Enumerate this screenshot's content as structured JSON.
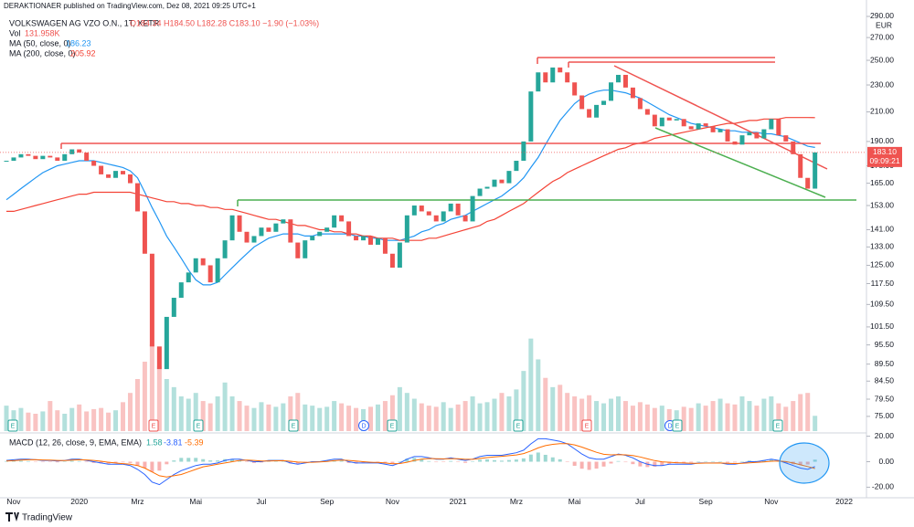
{
  "header": "DERAKTIONAER published on TradingView.com, Dez 08, 2021 09:25 UTC+1",
  "footer": "TradingView",
  "chart_data": {
    "type": "candlestick",
    "title": "VOLKSWAGEN AG VZO O.N., 1T, XETR",
    "ohlc_text": "O184.34 H184.50 L182.28 C183.10 −1.90 (−1.03%)",
    "currency": "EUR",
    "last_price_label": "183.10",
    "countdown": "09:09:21",
    "log_scale": true,
    "up_color": "#26a69a",
    "down_color": "#ef5350",
    "ylim": [
      70.7,
      300
    ],
    "yticks": [
      {
        "value": 290,
        "label": "290.00"
      },
      {
        "value": 270,
        "label": "270.00"
      },
      {
        "value": 250,
        "label": "250.00"
      },
      {
        "value": 230,
        "label": "230.00"
      },
      {
        "value": 210,
        "label": "210.00"
      },
      {
        "value": 190,
        "label": "190.00"
      },
      {
        "value": 175,
        "label": "175.00"
      },
      {
        "value": 165,
        "label": "165.00"
      },
      {
        "value": 153,
        "label": "153.00"
      },
      {
        "value": 141,
        "label": "141.00"
      },
      {
        "value": 133,
        "label": "133.00"
      },
      {
        "value": 125,
        "label": "125.00"
      },
      {
        "value": 117.5,
        "label": "117.50"
      },
      {
        "value": 109.5,
        "label": "109.50"
      },
      {
        "value": 101.5,
        "label": "101.50"
      },
      {
        "value": 95.5,
        "label": "95.50"
      },
      {
        "value": 89.5,
        "label": "89.50"
      },
      {
        "value": 84.5,
        "label": "84.50"
      },
      {
        "value": 79.5,
        "label": "79.50"
      },
      {
        "value": 75,
        "label": "75.00"
      }
    ],
    "categories": [
      null,
      "Nov",
      null,
      null,
      null,
      null,
      null,
      null,
      null,
      null,
      "2020",
      null,
      null,
      null,
      null,
      null,
      null,
      null,
      "Mrz",
      null,
      null,
      null,
      null,
      null,
      null,
      null,
      "Mai",
      null,
      null,
      null,
      null,
      null,
      null,
      null,
      null,
      "Jul",
      null,
      null,
      null,
      null,
      null,
      null,
      null,
      null,
      "Sep",
      null,
      null,
      null,
      null,
      null,
      null,
      null,
      null,
      "Nov",
      null,
      null,
      null,
      null,
      null,
      null,
      null,
      null,
      "2021",
      null,
      null,
      null,
      null,
      null,
      null,
      null,
      "Mrz",
      null,
      null,
      null,
      null,
      null,
      null,
      null,
      "Mai",
      null,
      null,
      null,
      null,
      null,
      null,
      null,
      null,
      "Jul",
      null,
      null,
      null,
      null,
      null,
      null,
      null,
      null,
      "Sep",
      null,
      null,
      null,
      null,
      null,
      null,
      null,
      null,
      "Nov",
      null,
      null,
      null,
      null,
      null,
      null,
      null,
      null,
      null,
      "2022"
    ],
    "values": [
      178,
      180,
      182,
      181,
      179,
      181,
      180,
      178,
      182,
      185,
      183,
      178,
      175,
      170,
      168,
      172,
      170,
      165,
      150,
      130,
      95,
      88,
      105,
      112,
      118,
      122,
      128,
      125,
      118,
      128,
      136,
      148,
      140,
      135,
      138,
      142,
      140,
      144,
      146,
      135,
      128,
      136,
      138,
      140,
      142,
      148,
      145,
      138,
      136,
      138,
      134,
      137,
      130,
      124,
      135,
      148,
      153,
      150,
      148,
      145,
      150,
      154,
      148,
      145,
      158,
      162,
      163,
      167,
      165,
      172,
      178,
      190,
      225,
      240,
      232,
      244,
      240,
      232,
      222,
      212,
      206,
      215,
      218,
      232,
      238,
      228,
      220,
      212,
      208,
      200,
      206,
      204,
      205,
      200,
      198,
      202,
      200,
      196,
      198,
      190,
      188,
      194,
      196,
      192,
      198,
      205,
      194,
      190,
      182,
      168,
      162,
      183.1,
      null,
      null,
      null,
      null
    ],
    "indicators": [
      {
        "name": "MA (50, close, 0)",
        "value_label": "186.23",
        "color": "#2196f3",
        "values": [
          156,
          159,
          162,
          165,
          168,
          171,
          173,
          175,
          176,
          177,
          178,
          178,
          178,
          177,
          176,
          175,
          174,
          172,
          168,
          160,
          152,
          145,
          138,
          133,
          128,
          123,
          119,
          117,
          117,
          118,
          121,
          124,
          127,
          130,
          133,
          135,
          137,
          138,
          139,
          139,
          139,
          138,
          138,
          139,
          139,
          139,
          139,
          139,
          138,
          138,
          137,
          137,
          136,
          136,
          136,
          137,
          138,
          140,
          141,
          143,
          144,
          146,
          147,
          148,
          150,
          152,
          154,
          156,
          158,
          161,
          164,
          168,
          174,
          180,
          188,
          196,
          204,
          210,
          216,
          220,
          223,
          225,
          226,
          226,
          225,
          224,
          222,
          220,
          217,
          214,
          211,
          208,
          206,
          204,
          202,
          201,
          200,
          199,
          198,
          197,
          197,
          196,
          196,
          196,
          195,
          195,
          194,
          193,
          191,
          189,
          187,
          186.23,
          null,
          null,
          null,
          null
        ]
      },
      {
        "name": "MA (200, close, 0)",
        "value_label": "205.92",
        "color": "#f44336",
        "values": [
          150,
          150,
          151,
          152,
          153,
          154,
          155,
          156,
          157,
          158,
          159,
          159,
          160,
          160,
          160,
          160,
          160,
          160,
          159,
          158,
          157,
          156,
          155,
          155,
          154,
          154,
          153,
          153,
          152,
          152,
          151,
          151,
          150,
          149,
          148,
          147,
          146,
          146,
          145,
          144,
          143,
          143,
          142,
          141,
          141,
          140,
          140,
          139,
          139,
          138,
          138,
          137,
          137,
          137,
          136,
          136,
          136,
          136,
          137,
          137,
          138,
          139,
          140,
          141,
          142,
          143,
          145,
          146,
          148,
          150,
          152,
          154,
          157,
          160,
          163,
          166,
          168,
          171,
          173,
          175,
          177,
          179,
          181,
          183,
          185,
          186,
          188,
          189,
          190,
          192,
          193,
          194,
          195,
          196,
          197,
          198,
          199,
          200,
          201,
          202,
          202,
          203,
          204,
          204,
          205,
          205,
          205,
          206,
          206,
          206,
          206,
          205.92,
          null,
          null,
          null,
          null
        ]
      }
    ],
    "volume": {
      "name": "Vol",
      "value_label": "131.958K",
      "ylim": [
        0,
        1500
      ],
      "values": [
        220,
        180,
        200,
        160,
        150,
        170,
        260,
        180,
        150,
        200,
        230,
        170,
        190,
        200,
        160,
        180,
        250,
        330,
        450,
        600,
        750,
        560,
        450,
        380,
        300,
        280,
        330,
        260,
        240,
        300,
        420,
        300,
        260,
        220,
        200,
        250,
        230,
        210,
        240,
        300,
        330,
        230,
        220,
        200,
        210,
        260,
        240,
        220,
        200,
        190,
        210,
        230,
        260,
        310,
        380,
        330,
        280,
        240,
        220,
        210,
        250,
        200,
        230,
        260,
        300,
        240,
        250,
        280,
        330,
        300,
        360,
        520,
        800,
        620,
        460,
        380,
        400,
        330,
        300,
        280,
        310,
        260,
        240,
        280,
        300,
        260,
        220,
        250,
        230,
        200,
        220,
        190,
        180,
        210,
        200,
        240,
        220,
        260,
        280,
        240,
        230,
        300,
        260,
        220,
        280,
        300,
        240,
        210,
        260,
        320,
        330,
        131.958,
        null,
        null,
        null,
        null
      ]
    },
    "macd": {
      "name": "MACD (12, 26, close, 9, EMA, EMA)",
      "ylim": [
        -29,
        24
      ],
      "yticks": [
        {
          "value": 20,
          "label": "20.00"
        },
        {
          "value": 0,
          "label": "0.00"
        },
        {
          "value": -20,
          "label": "-20.00"
        }
      ],
      "histogram": {
        "value_label": "1.58",
        "color": "#26a69a",
        "values": [
          0.5,
          0.7,
          0.8,
          0.5,
          -0.1,
          -0.4,
          -0.2,
          -0.5,
          0.1,
          0.8,
          0.5,
          -0.4,
          -1,
          -1.4,
          -1.6,
          -1,
          -0.5,
          -1,
          -3,
          -5,
          -8,
          -7,
          -2,
          1,
          3,
          3,
          3,
          2,
          1,
          1,
          2,
          2,
          1,
          -0.2,
          -1,
          -0.6,
          0.4,
          0.3,
          0.2,
          -1.4,
          -1.7,
          -0.5,
          0.4,
          0.2,
          0.8,
          1.2,
          0.8,
          -1,
          -1.5,
          -1,
          -0.6,
          -0.4,
          -1,
          -1.4,
          0.4,
          2.4,
          3,
          2,
          0.5,
          -0.4,
          -0.2,
          0.6,
          -0.3,
          -0.9,
          0.1,
          1.5,
          1.8,
          1.2,
          0.8,
          1.3,
          1.7,
          2.6,
          5.6,
          7.2,
          5.4,
          3.4,
          1.9,
          -0.1,
          -3.2,
          -5.5,
          -6.4,
          -5.4,
          -3.8,
          -1.4,
          0.5,
          -0.4,
          -1.9,
          -3.7,
          -4.2,
          -3.9,
          -2.9,
          -1.6,
          -1.2,
          -1,
          -0.7,
          0.2,
          0.1,
          0.1,
          0,
          -0.8,
          -0.6,
          0.3,
          0.9,
          0.6,
          1.2,
          1.6,
          0.4,
          -1.1,
          -2,
          -2.6,
          -2.2,
          1.58,
          null,
          null,
          null,
          null
        ]
      },
      "macd": {
        "value_label": "-3.81",
        "color": "#2962ff",
        "values": [
          1,
          1.5,
          2,
          2,
          1.5,
          1,
          1,
          0.5,
          1,
          2,
          2,
          1,
          0,
          -1,
          -2,
          -2,
          -2,
          -3,
          -6,
          -10,
          -16,
          -18,
          -14,
          -10,
          -7,
          -5,
          -3,
          -2,
          -2,
          -1,
          1,
          2,
          2,
          1,
          0,
          0,
          1,
          1,
          1,
          -1,
          -2,
          -1,
          0,
          0,
          1,
          2,
          2,
          0,
          -1,
          -1,
          -1,
          -1,
          -2,
          -3,
          -1,
          2,
          4,
          4,
          3,
          2,
          2,
          3,
          2,
          1,
          2,
          4,
          5,
          5,
          5,
          6,
          7,
          9,
          14,
          18,
          18,
          17,
          16,
          14,
          10,
          6,
          3,
          2,
          2,
          4,
          6,
          5,
          3,
          0,
          -2,
          -3,
          -3,
          -2,
          -2,
          -2,
          -2,
          -1,
          -1,
          -1,
          -1,
          -2,
          -2,
          -1,
          0,
          0,
          1,
          2,
          1,
          -1,
          -3,
          -5,
          -6,
          -3.81,
          null,
          null,
          null,
          null
        ]
      },
      "signal": {
        "value_label": "-5.39",
        "color": "#ff6d00",
        "values": [
          0.5,
          0.8,
          1.2,
          1.5,
          1.6,
          1.4,
          1.2,
          1,
          0.9,
          1.2,
          1.5,
          1.4,
          1,
          0.4,
          -0.4,
          -1,
          -1.5,
          -2,
          -3,
          -5,
          -8,
          -11,
          -12,
          -11,
          -10,
          -8,
          -6,
          -4,
          -3,
          -2,
          -1,
          0,
          1,
          1.2,
          1,
          0.6,
          0.6,
          0.7,
          0.8,
          0.4,
          -0.3,
          -0.5,
          -0.4,
          -0.2,
          0.2,
          0.8,
          1.2,
          1,
          0.5,
          0,
          -0.4,
          -0.6,
          -1,
          -1.6,
          -1.4,
          -0.4,
          1,
          2,
          2.5,
          2.4,
          2.2,
          2.4,
          2.3,
          1.9,
          1.9,
          2.5,
          3.2,
          3.8,
          4.2,
          4.7,
          5.3,
          6.4,
          8.4,
          10.8,
          12.6,
          13.6,
          14.1,
          14.1,
          13.2,
          11.5,
          9.4,
          7.4,
          5.8,
          5.4,
          5.5,
          5.4,
          4.9,
          3.7,
          2.2,
          0.9,
          -0.1,
          -0.4,
          -0.8,
          -1,
          -1.3,
          -1.2,
          -1.1,
          -1.1,
          -1,
          -1.2,
          -1.4,
          -1.3,
          -0.9,
          -0.6,
          -0.2,
          0.4,
          0.6,
          0.1,
          -1,
          -2.4,
          -3.8,
          -5.39,
          null,
          null,
          null,
          null
        ]
      }
    },
    "events": [
      "E",
      "E",
      "E",
      "E",
      "D",
      "E",
      "E",
      "E",
      "D",
      "E",
      "E"
    ]
  }
}
